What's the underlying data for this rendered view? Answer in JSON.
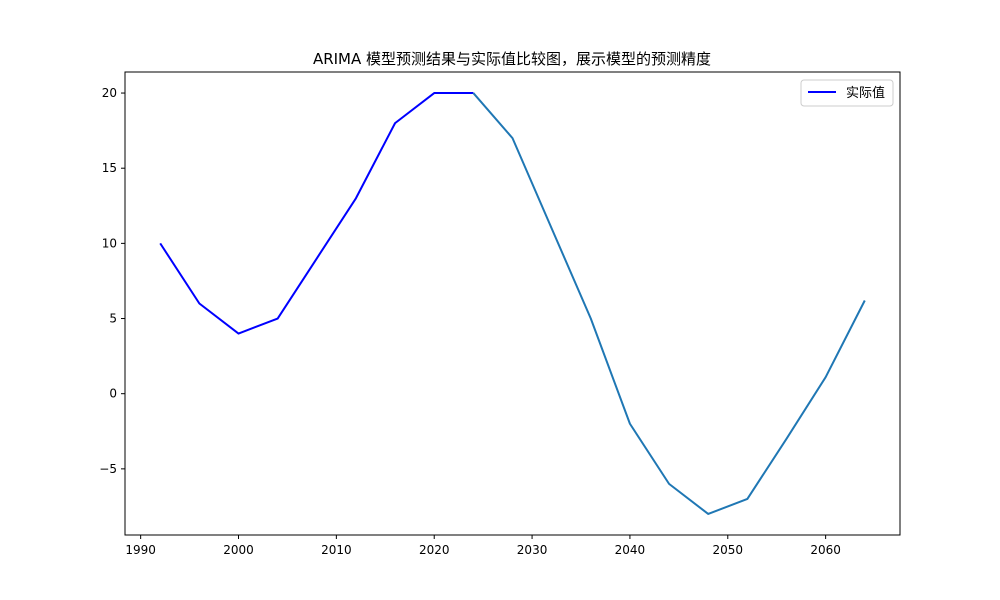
{
  "chart_data": {
    "type": "line",
    "title": "ARIMA 模型预测结果与实际值比较图，展示模型的预测精度",
    "xlabel": "",
    "ylabel": "",
    "xlim": [
      1988.4,
      2067.6
    ],
    "ylim": [
      -9.4,
      21.4
    ],
    "grid": false,
    "legend_position": "top-right",
    "x_ticks": [
      1990,
      2000,
      2010,
      2020,
      2030,
      2040,
      2050,
      2060
    ],
    "y_ticks": [
      -5,
      0,
      5,
      10,
      15,
      20
    ],
    "x_tick_labels": [
      "1990",
      "2000",
      "2010",
      "2020",
      "2030",
      "2040",
      "2050",
      "2060"
    ],
    "y_tick_labels": [
      "−5",
      "0",
      "5",
      "10",
      "15",
      "20"
    ],
    "series": [
      {
        "name": "实际值",
        "color": "#0000ff",
        "in_legend": true,
        "x": [
          1992,
          1996,
          2000,
          2004,
          2008,
          2012,
          2016,
          2020,
          2024
        ],
        "y": [
          10,
          6,
          4,
          5,
          9,
          13,
          18,
          20,
          20
        ]
      },
      {
        "color": "#1f77b4",
        "in_legend": false,
        "x": [
          2024,
          2028,
          2032,
          2036,
          2040,
          2044,
          2048,
          2052,
          2056,
          2060,
          2064
        ],
        "y": [
          20,
          17,
          11,
          5,
          -2,
          -6,
          -8,
          -7,
          -3,
          1.1,
          6.2
        ]
      }
    ]
  }
}
